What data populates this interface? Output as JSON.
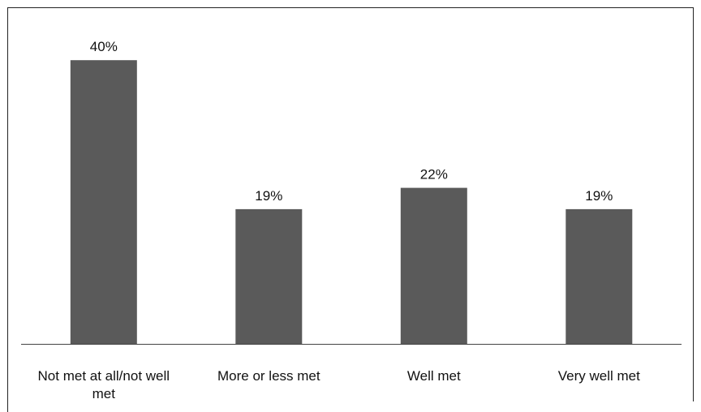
{
  "chart_data": {
    "type": "bar",
    "title": "",
    "xlabel": "",
    "ylabel": "",
    "categories": [
      [
        "Not met at all/not well",
        "met"
      ],
      [
        "More or less met"
      ],
      [
        "Well met"
      ],
      [
        "Very well met"
      ]
    ],
    "values": [
      40,
      19,
      22,
      19
    ],
    "value_labels": [
      "40%",
      "19%",
      "22%",
      "19%"
    ],
    "ylim": [
      0,
      44.6
    ],
    "grid": false,
    "legend": "none",
    "bar_color": "#5a5a5a"
  }
}
